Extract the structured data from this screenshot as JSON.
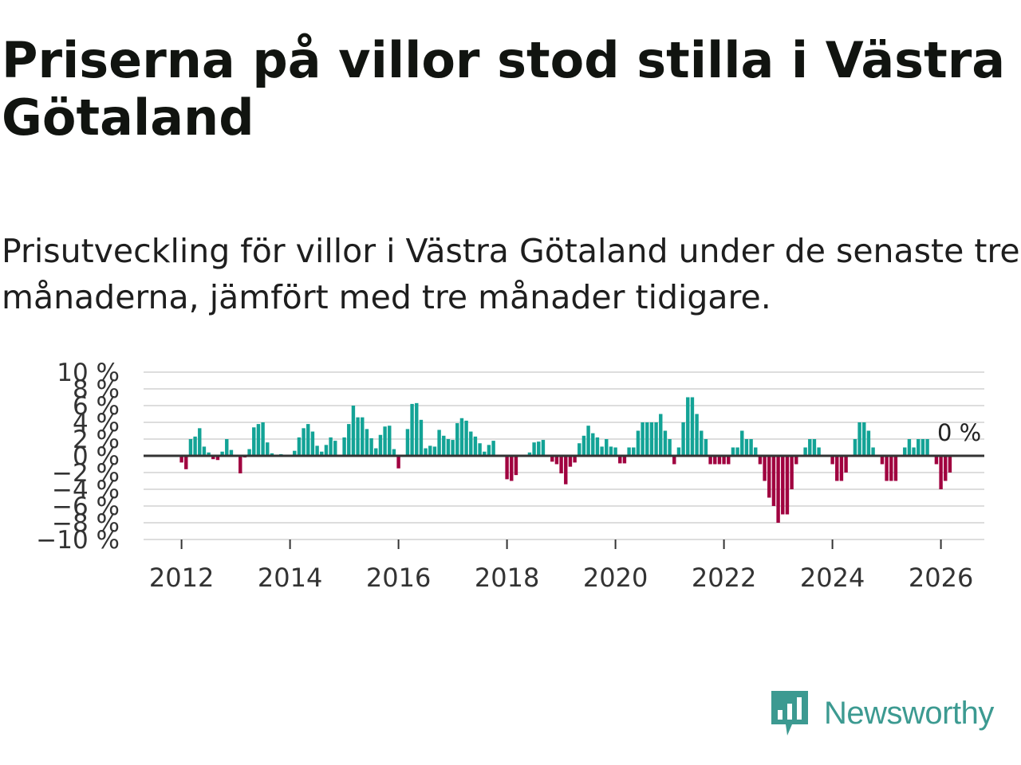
{
  "title": "Priserna på villor stod stilla i Västra Götaland",
  "subtitle": "Prisutveckling för villor i Västra Götaland under de senaste tre månaderna, jämfört med tre månader tidigare.",
  "brand": {
    "name": "Newsworthy",
    "color": "#3c9a91"
  },
  "colors": {
    "positive": "#13a396",
    "negative": "#a0003f",
    "grid": "#dddddd",
    "zero_line": "#333333"
  },
  "chart_data": {
    "type": "bar",
    "title": "",
    "xlabel": "",
    "ylabel": "",
    "ylim": [
      -10,
      10
    ],
    "y_ticks": [
      10,
      8,
      6,
      4,
      2,
      0,
      -2,
      -4,
      -6,
      -8,
      -10
    ],
    "y_tick_labels": [
      "10 %",
      "8 %",
      "6 %",
      "4 %",
      "2 %",
      "0 %",
      "−2 %",
      "−4 %",
      "−6 %",
      "−8 %",
      "−10 %"
    ],
    "x_ticks": [
      "2012",
      "2014",
      "2016",
      "2018",
      "2020",
      "2022",
      "2024",
      "2026"
    ],
    "start_year": 2012,
    "start_month": 1,
    "x_range": [
      2011.3,
      2026.8
    ],
    "last_value_label": "0 %",
    "values": [
      -0.8,
      -1.6,
      2,
      2.3,
      3.3,
      1.1,
      0.4,
      -0.4,
      -0.5,
      0.5,
      2,
      0.7,
      0,
      -2.1,
      -0.2,
      0.8,
      3.4,
      3.8,
      4,
      1.6,
      0.3,
      0.1,
      0.2,
      0.1,
      0.1,
      0.6,
      2.2,
      3.3,
      3.8,
      2.9,
      1.2,
      0.5,
      1.3,
      2.2,
      1.8,
      0.1,
      2.2,
      3.8,
      6,
      4.6,
      4.6,
      3.2,
      2.1,
      0.9,
      2.5,
      3.5,
      3.6,
      0.8,
      -1.5,
      0.1,
      3.2,
      6.2,
      6.3,
      4.3,
      0.9,
      1.2,
      1.1,
      3.1,
      2.4,
      2,
      1.9,
      3.9,
      4.5,
      4.2,
      2.9,
      2.3,
      1.5,
      0.5,
      1.3,
      1.8,
      0,
      0,
      -2.8,
      -3,
      -2.3,
      0,
      0,
      0.4,
      1.6,
      1.7,
      1.9,
      0,
      -0.7,
      -1,
      -2.1,
      -3.4,
      -1.3,
      -0.8,
      1.5,
      2.4,
      3.6,
      2.7,
      2.2,
      1.1,
      2,
      1.1,
      1,
      -0.9,
      -0.9,
      1,
      1,
      3,
      4,
      4,
      4,
      4,
      5,
      3,
      2,
      -1,
      1,
      4,
      7,
      7,
      5,
      3,
      2,
      -1,
      -1,
      -1,
      -1,
      -1,
      1,
      1,
      3,
      2,
      2,
      1,
      -1,
      -3,
      -5,
      -6,
      -8,
      -7,
      -7,
      -4,
      -1,
      0,
      1,
      2,
      2,
      1,
      0,
      0,
      -1,
      -3,
      -3,
      -2,
      0,
      2,
      4,
      4,
      3,
      1,
      0,
      -1,
      -3,
      -3,
      -3,
      0,
      1,
      2,
      1,
      2,
      2,
      2,
      0,
      -1,
      -4,
      -3,
      -2,
      0
    ]
  }
}
